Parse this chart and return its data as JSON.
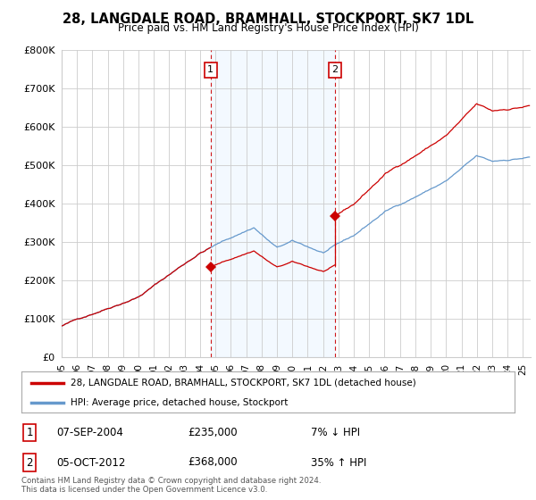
{
  "title": "28, LANGDALE ROAD, BRAMHALL, STOCKPORT, SK7 1DL",
  "subtitle": "Price paid vs. HM Land Registry's House Price Index (HPI)",
  "ylabel_ticks": [
    "£0",
    "£100K",
    "£200K",
    "£300K",
    "£400K",
    "£500K",
    "£600K",
    "£700K",
    "£800K"
  ],
  "ylim": [
    0,
    800000
  ],
  "xlim_start": 1995.0,
  "xlim_end": 2025.5,
  "xtick_years": [
    1995,
    1996,
    1997,
    1998,
    1999,
    2000,
    2001,
    2002,
    2003,
    2004,
    2005,
    2006,
    2007,
    2008,
    2009,
    2010,
    2011,
    2012,
    2013,
    2014,
    2015,
    2016,
    2017,
    2018,
    2019,
    2020,
    2021,
    2022,
    2023,
    2024,
    2025
  ],
  "xtick_labels": [
    "95",
    "96",
    "97",
    "98",
    "99",
    "00",
    "01",
    "02",
    "03",
    "04",
    "05",
    "06",
    "07",
    "08",
    "09",
    "10",
    "11",
    "12",
    "13",
    "14",
    "15",
    "16",
    "17",
    "18",
    "19",
    "20",
    "21",
    "22",
    "23",
    "24",
    "25"
  ],
  "hpi_color": "#6699cc",
  "sale_color": "#cc0000",
  "dashed_color": "#cc0000",
  "shade_color": "#ddeeff",
  "sale1_x": 2004.69,
  "sale1_y": 235000,
  "sale2_x": 2012.76,
  "sale2_y": 368000,
  "legend_sale_label": "28, LANGDALE ROAD, BRAMHALL, STOCKPORT, SK7 1DL (detached house)",
  "legend_hpi_label": "HPI: Average price, detached house, Stockport",
  "annotation1_date": "07-SEP-2004",
  "annotation1_price": "£235,000",
  "annotation1_hpi": "7% ↓ HPI",
  "annotation2_date": "05-OCT-2012",
  "annotation2_price": "£368,000",
  "annotation2_hpi": "35% ↑ HPI",
  "footer": "Contains HM Land Registry data © Crown copyright and database right 2024.\nThis data is licensed under the Open Government Licence v3.0.",
  "background_color": "#ffffff",
  "grid_color": "#cccccc"
}
